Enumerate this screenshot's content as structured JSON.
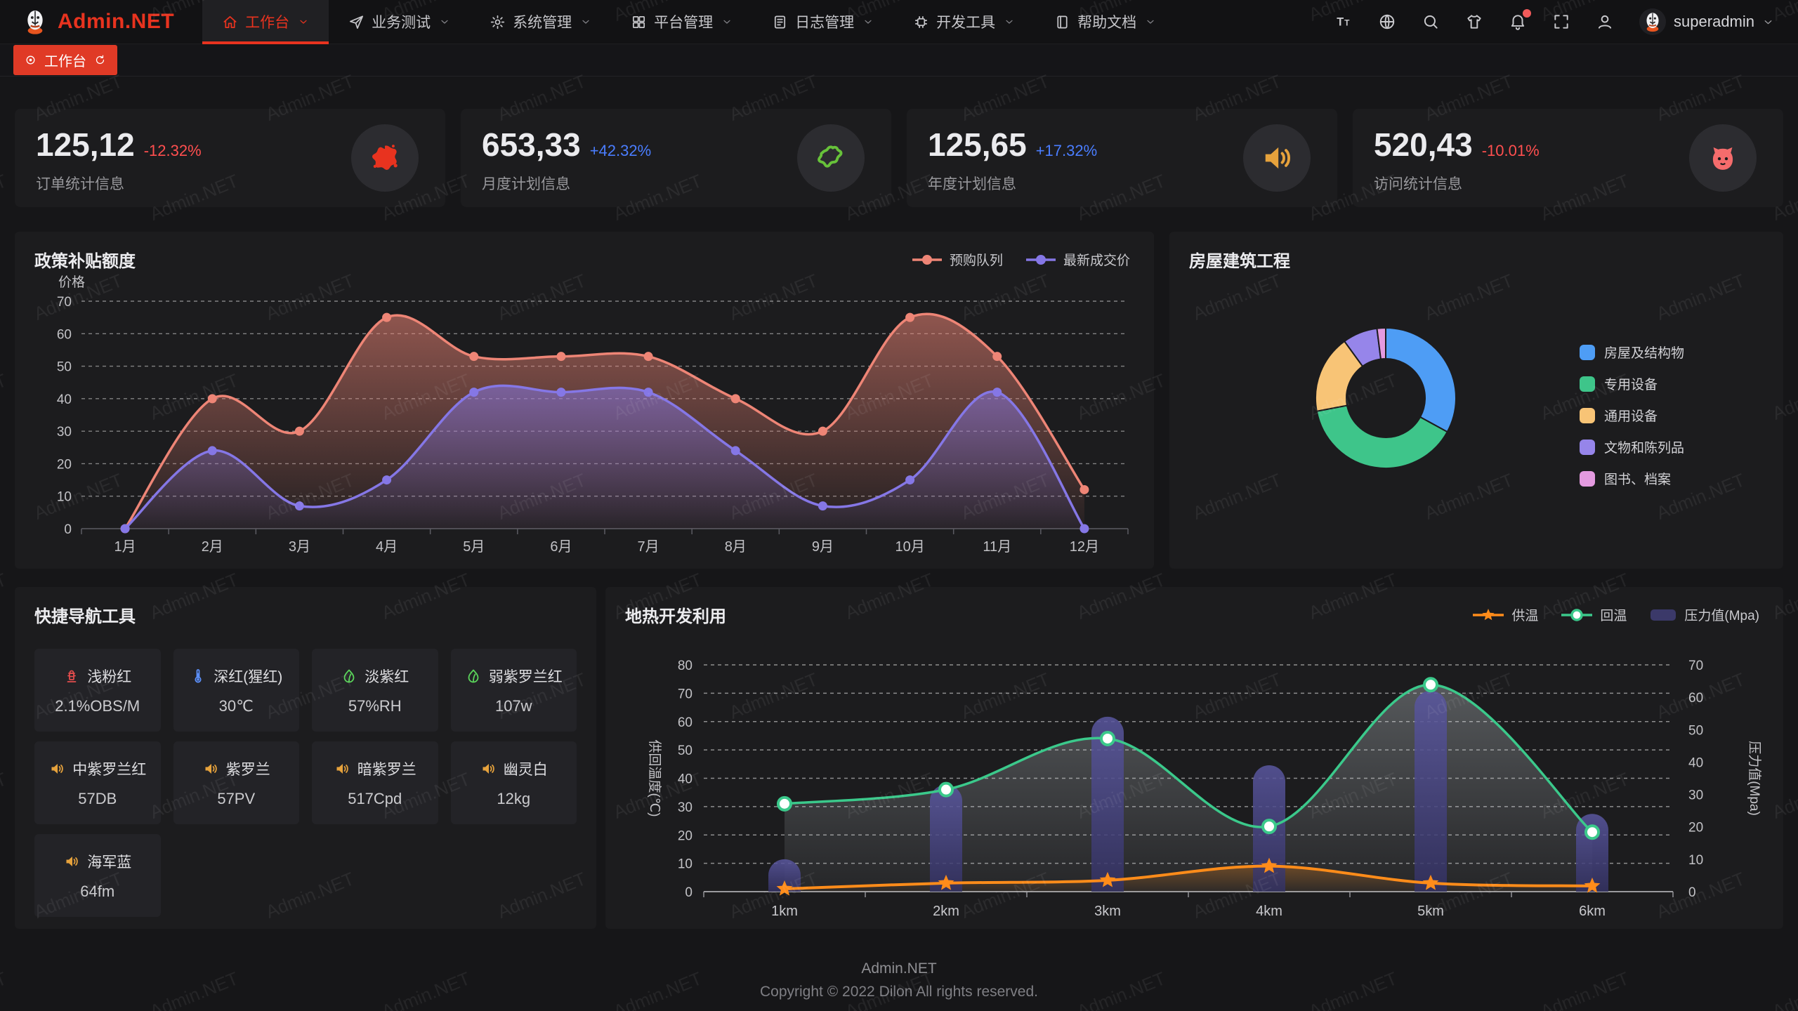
{
  "accent": {
    "primary": "#e8331f",
    "positive": "#4a7dff",
    "negative": "#ff4f4f"
  },
  "watermark": "Admin.NET",
  "header": {
    "logo_text": "Admin.NET",
    "nav": [
      {
        "label": "工作台",
        "icon": "home-icon",
        "active": true
      },
      {
        "label": "业务测试",
        "icon": "send-icon",
        "active": false
      },
      {
        "label": "系统管理",
        "icon": "gear-icon",
        "active": false
      },
      {
        "label": "平台管理",
        "icon": "grid-icon",
        "active": false
      },
      {
        "label": "日志管理",
        "icon": "file-icon",
        "active": false
      },
      {
        "label": "开发工具",
        "icon": "chip-icon",
        "active": false
      },
      {
        "label": "帮助文档",
        "icon": "book-icon",
        "active": false
      }
    ],
    "actions": [
      "font-size-icon",
      "language-icon",
      "search-icon",
      "theme-icon",
      "bell-icon",
      "fullscreen-icon",
      "user-icon"
    ],
    "bell_badge": true,
    "user": {
      "name": "superadmin"
    }
  },
  "tabbar": {
    "tabs": [
      {
        "label": "工作台",
        "active": true
      }
    ]
  },
  "stat_cards": [
    {
      "value": "125,12",
      "delta": "-12.32%",
      "trend": "down",
      "label": "订单统计信息",
      "icon": "splat-icon",
      "icon_color": "#e8331f"
    },
    {
      "value": "653,33",
      "delta": "+42.32%",
      "trend": "up",
      "label": "月度计划信息",
      "icon": "map-icon",
      "icon_color": "#67c23a"
    },
    {
      "value": "125,65",
      "delta": "+17.32%",
      "trend": "up",
      "label": "年度计划信息",
      "icon": "speaker-icon",
      "icon_color": "#e6a23c"
    },
    {
      "value": "520,43",
      "delta": "-10.01%",
      "trend": "down",
      "label": "访问统计信息",
      "icon": "cat-icon",
      "icon_color": "#f56c6c"
    }
  ],
  "quick_nav": {
    "title": "快捷导航工具",
    "items": [
      {
        "name": "浅粉红",
        "value": "2.1%OBS/M",
        "icon": "hydrant-icon",
        "icon_color": "#e34d4d"
      },
      {
        "name": "深红(猩红)",
        "value": "30℃",
        "icon": "thermometer-icon",
        "icon_color": "#5b8ff9"
      },
      {
        "name": "淡紫红",
        "value": "57%RH",
        "icon": "leaf-icon",
        "icon_color": "#5ad45a"
      },
      {
        "name": "弱紫罗兰红",
        "value": "107w",
        "icon": "leaf-icon",
        "icon_color": "#5ad45a"
      },
      {
        "name": "中紫罗兰红",
        "value": "57DB",
        "icon": "speaker-icon",
        "icon_color": "#e6a23c"
      },
      {
        "name": "紫罗兰",
        "value": "57PV",
        "icon": "speaker-icon",
        "icon_color": "#e6a23c"
      },
      {
        "name": "暗紫罗兰",
        "value": "517Cpd",
        "icon": "speaker-icon",
        "icon_color": "#e6a23c"
      },
      {
        "name": "幽灵白",
        "value": "12kg",
        "icon": "speaker-icon",
        "icon_color": "#e6a23c"
      },
      {
        "name": "海军蓝",
        "value": "64fm",
        "icon": "speaker-icon",
        "icon_color": "#e6a23c"
      }
    ]
  },
  "footer": {
    "line1": "Admin.NET",
    "line2": "Copyright © 2022 Dilon All rights reserved."
  },
  "chart_data": [
    {
      "id": "policy",
      "type": "area",
      "title": "政策补贴额度",
      "ylabel": "价格",
      "categories": [
        "1月",
        "2月",
        "3月",
        "4月",
        "5月",
        "6月",
        "7月",
        "8月",
        "9月",
        "10月",
        "11月",
        "12月"
      ],
      "ylim": [
        0,
        70
      ],
      "ytick_step": 10,
      "grid": "dashed",
      "legend_position": "top-right",
      "series": [
        {
          "name": "预购队列",
          "color": "#ee8576",
          "values": [
            0,
            40,
            30,
            65,
            53,
            53,
            53,
            40,
            30,
            65,
            53,
            12
          ]
        },
        {
          "name": "最新成交价",
          "color": "#8577e6",
          "values": [
            0,
            24,
            7,
            15,
            42,
            42,
            42,
            24,
            7,
            15,
            42,
            0
          ]
        }
      ]
    },
    {
      "id": "building",
      "type": "pie",
      "title": "房屋建筑工程",
      "donut": true,
      "legend_position": "right",
      "labels": [
        "房屋及结构物",
        "专用设备",
        "通用设备",
        "文物和陈列品",
        "图书、档案"
      ],
      "values": [
        33,
        39,
        18,
        8,
        2
      ],
      "colors": [
        "#4e9df5",
        "#3ec58a",
        "#f8c476",
        "#9685ea",
        "#e49ae0"
      ]
    },
    {
      "id": "geothermal",
      "type": "line+bar",
      "title": "地热开发利用",
      "categories": [
        "1km",
        "2km",
        "3km",
        "4km",
        "5km",
        "6km"
      ],
      "ylabel_left": "供回温度(℃)",
      "ylabel_right": "压力值(Mpa)",
      "ylim_left": [
        0,
        80
      ],
      "ylim_right": [
        0,
        70
      ],
      "grid": "dashed",
      "legend_position": "top-right",
      "series": [
        {
          "name": "供温",
          "type": "line",
          "marker": "star",
          "axis": "left",
          "color": "#ff8c1a",
          "values": [
            1,
            3,
            4,
            9,
            3,
            2
          ]
        },
        {
          "name": "回温",
          "type": "line",
          "marker": "circle",
          "axis": "left",
          "color": "#3bc98b",
          "values": [
            31,
            36,
            54,
            23,
            73,
            21
          ]
        },
        {
          "name": "压力值(Mpa)",
          "type": "bar",
          "axis": "right",
          "color": "#45437a",
          "values": [
            10,
            33,
            54,
            39,
            62,
            24
          ]
        }
      ]
    }
  ]
}
